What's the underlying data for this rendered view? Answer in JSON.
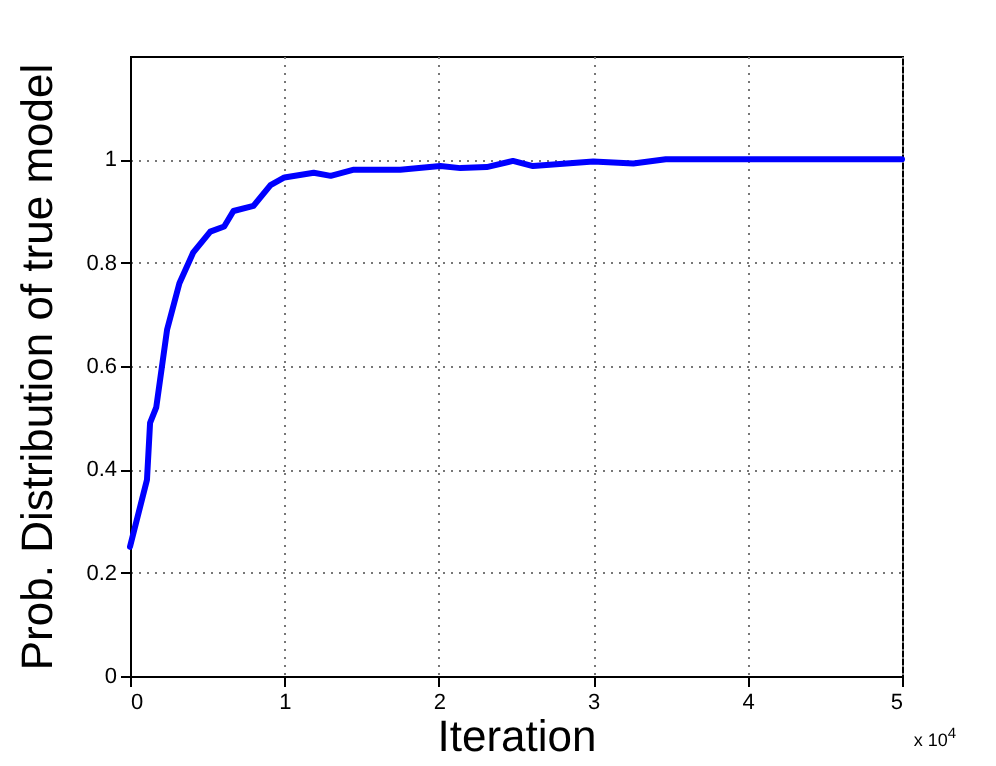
{
  "chart_data": {
    "type": "line",
    "xlabel": "Iteration",
    "ylabel": "Prob. Distribution of true model",
    "x": [
      0,
      0.11,
      0.13,
      0.17,
      0.24,
      0.32,
      0.41,
      0.52,
      0.61,
      0.67,
      0.8,
      0.91,
      1.0,
      1.19,
      1.3,
      1.45,
      1.75,
      2.01,
      2.14,
      2.31,
      2.48,
      2.61,
      3.0,
      3.26,
      3.47,
      3.86,
      5
    ],
    "series": [
      {
        "color": "#0000ff",
        "values": [
          0.25,
          0.38,
          0.49,
          0.52,
          0.67,
          0.76,
          0.82,
          0.86,
          0.87,
          0.9,
          0.91,
          0.95,
          0.965,
          0.974,
          0.968,
          0.98,
          0.98,
          0.987,
          0.983,
          0.985,
          0.997,
          0.987,
          0.996,
          0.992,
          1.0,
          1.0,
          1.0
        ]
      }
    ],
    "xlim": [
      0,
      5
    ],
    "xticks": [
      0,
      1,
      2,
      3,
      4,
      5
    ],
    "ylim": [
      0,
      1.2
    ],
    "yticks": [
      0,
      0.2,
      0.4,
      0.6,
      0.8,
      1
    ],
    "grid": true,
    "line_style": "solid",
    "annotations": [
      "x 10$^{4}$"
    ]
  }
}
